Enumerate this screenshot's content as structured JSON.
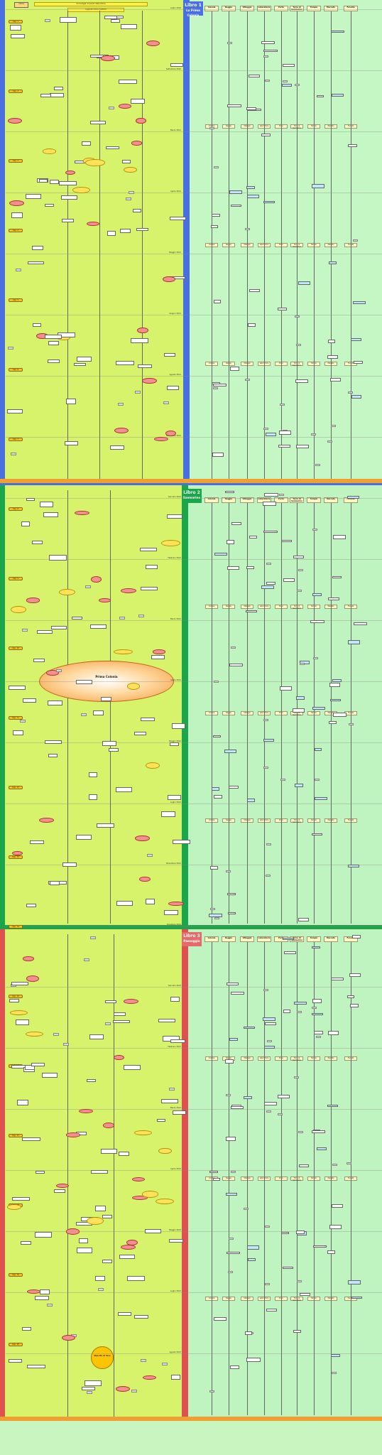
{
  "header": {
    "banner_top": "Cronologia di eventi della storia",
    "banner_sub": "Legenda colori e simboli",
    "corner_label": "Indice"
  },
  "books": [
    {
      "label": "Libro 1",
      "subtitle": "La Prima Colonia",
      "color": "#4a6fe3"
    },
    {
      "label": "Libro 2",
      "subtitle": "Sanmarino",
      "color": "#1aa64a"
    },
    {
      "label": "Libro 3",
      "subtitle": "Paesaggio",
      "color": "#e05050"
    }
  ],
  "columns": [
    "Colonia",
    "Reggia",
    "Villaggio",
    "Laboratorio",
    "Porto",
    "Torre di Sanmarino",
    "Tempio",
    "Mercato",
    "Foresta"
  ],
  "dates": [
    "Luglio 3010",
    "Settembre 3010",
    "Marzo 3011",
    "Aprile 3011",
    "Maggio 3011",
    "Giugno 3011",
    "Agosto 3011",
    "Settembre 3011",
    "Gennaio 3012",
    "Febbraio 3012",
    "Marzo 3012",
    "Aprile 3012",
    "Maggio 3012",
    "Luglio 3012",
    "Novembre 3012",
    "Dicembre 3012",
    "Gennaio 3013",
    "Febbraio 3013",
    "Marzo 3013",
    "Aprile 3013",
    "Maggio 3013",
    "Luglio 3013",
    "Agosto 3013"
  ],
  "tags": [
    "Cap. 1",
    "Cap. 2",
    "Cap. 3",
    "Cap. 4",
    "Cap. 5",
    "Cap. 6",
    "Cap. 7",
    "Cap. 8",
    "Cap. 9",
    "Cap. 10",
    "Cap. 11",
    "Cap. 12",
    "Cap. 13",
    "Cap. 14",
    "Cap. 15",
    "Cap. 16",
    "Cap. 17",
    "Cap. 18",
    "Cap. 19",
    "Cap. 20"
  ],
  "highlights": {
    "prima_colonia": "Prima Colonia",
    "sanmarino": "Sanmarino",
    "nascita": "Nascita di Tera"
  },
  "colors": {
    "left_panel": "#d7f26b",
    "right_panel": "#c4f7c4",
    "tag": "#f6c21c",
    "red_node": "#f48f8f",
    "cloud": "#ffe15a",
    "orange_band": "#f0a030"
  }
}
